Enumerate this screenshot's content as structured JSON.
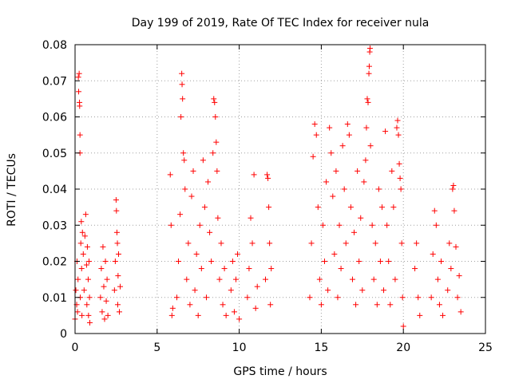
{
  "chart_data": {
    "type": "scatter",
    "title": "Day 199 of 2019, Rate Of TEC Index for receiver nula",
    "xlabel": "GPS time / hours",
    "ylabel": "ROTI / TECUs",
    "xlim": [
      0,
      25
    ],
    "ylim": [
      0,
      0.08
    ],
    "x_ticks": [
      0,
      5,
      10,
      15,
      20,
      25
    ],
    "y_ticks": [
      0,
      0.01,
      0.02,
      0.03,
      0.04,
      0.05,
      0.06,
      0.07,
      0.08
    ],
    "x_tick_labels": [
      "0",
      "5",
      "10",
      "15",
      "20",
      "25"
    ],
    "y_tick_labels": [
      "0",
      "0.01",
      "0.02",
      "0.03",
      "0.04",
      "0.05",
      "0.06",
      "0.07",
      "0.08"
    ],
    "grid": true,
    "marker": "+",
    "color": "#ff0000",
    "series": [
      {
        "points": [
          [
            0.0,
            0.004
          ],
          [
            0.05,
            0.012
          ],
          [
            0.1,
            0.008
          ],
          [
            0.12,
            0.02
          ],
          [
            0.15,
            0.006
          ],
          [
            0.18,
            0.015
          ],
          [
            0.2,
            0.071
          ],
          [
            0.22,
            0.067
          ],
          [
            0.25,
            0.072
          ],
          [
            0.27,
            0.064
          ],
          [
            0.28,
            0.063
          ],
          [
            0.3,
            0.055
          ],
          [
            0.3,
            0.05
          ],
          [
            0.32,
            0.01
          ],
          [
            0.35,
            0.025
          ],
          [
            0.38,
            0.031
          ],
          [
            0.4,
            0.018
          ],
          [
            0.42,
            0.005
          ],
          [
            0.45,
            0.028
          ],
          [
            0.5,
            0.022
          ],
          [
            0.55,
            0.012
          ],
          [
            0.6,
            0.027
          ],
          [
            0.65,
            0.033
          ],
          [
            0.7,
            0.019
          ],
          [
            0.72,
            0.008
          ],
          [
            0.75,
            0.024
          ],
          [
            0.8,
            0.015
          ],
          [
            0.82,
            0.005
          ],
          [
            0.85,
            0.02
          ],
          [
            0.88,
            0.01
          ],
          [
            0.9,
            0.003
          ],
          [
            1.55,
            0.01
          ],
          [
            1.6,
            0.018
          ],
          [
            1.65,
            0.006
          ],
          [
            1.7,
            0.024
          ],
          [
            1.75,
            0.013
          ],
          [
            1.8,
            0.004
          ],
          [
            1.85,
            0.02
          ],
          [
            1.9,
            0.009
          ],
          [
            1.95,
            0.015
          ],
          [
            2.0,
            0.005
          ],
          [
            2.4,
            0.012
          ],
          [
            2.45,
            0.02
          ],
          [
            2.5,
            0.037
          ],
          [
            2.52,
            0.034
          ],
          [
            2.55,
            0.028
          ],
          [
            2.58,
            0.025
          ],
          [
            2.6,
            0.008
          ],
          [
            2.62,
            0.016
          ],
          [
            2.65,
            0.022
          ],
          [
            2.7,
            0.006
          ],
          [
            2.75,
            0.013
          ],
          [
            5.8,
            0.044
          ],
          [
            5.85,
            0.03
          ],
          [
            5.9,
            0.005
          ],
          [
            5.95,
            0.007
          ],
          [
            6.2,
            0.01
          ],
          [
            6.3,
            0.02
          ],
          [
            6.4,
            0.033
          ],
          [
            6.45,
            0.06
          ],
          [
            6.5,
            0.072
          ],
          [
            6.52,
            0.069
          ],
          [
            6.55,
            0.065
          ],
          [
            6.6,
            0.05
          ],
          [
            6.65,
            0.048
          ],
          [
            6.7,
            0.04
          ],
          [
            6.8,
            0.015
          ],
          [
            6.9,
            0.025
          ],
          [
            7.0,
            0.008
          ],
          [
            7.1,
            0.038
          ],
          [
            7.2,
            0.045
          ],
          [
            7.3,
            0.012
          ],
          [
            7.4,
            0.022
          ],
          [
            7.5,
            0.005
          ],
          [
            7.6,
            0.03
          ],
          [
            7.7,
            0.018
          ],
          [
            7.8,
            0.048
          ],
          [
            7.9,
            0.035
          ],
          [
            8.0,
            0.01
          ],
          [
            8.1,
            0.042
          ],
          [
            8.2,
            0.028
          ],
          [
            8.3,
            0.02
          ],
          [
            8.4,
            0.05
          ],
          [
            8.45,
            0.065
          ],
          [
            8.5,
            0.064
          ],
          [
            8.55,
            0.06
          ],
          [
            8.6,
            0.053
          ],
          [
            8.65,
            0.045
          ],
          [
            8.7,
            0.032
          ],
          [
            8.8,
            0.015
          ],
          [
            8.9,
            0.025
          ],
          [
            9.0,
            0.008
          ],
          [
            9.1,
            0.018
          ],
          [
            9.2,
            0.005
          ],
          [
            9.5,
            0.012
          ],
          [
            9.6,
            0.02
          ],
          [
            9.7,
            0.006
          ],
          [
            9.8,
            0.015
          ],
          [
            9.9,
            0.022
          ],
          [
            10.0,
            0.004
          ],
          [
            10.5,
            0.01
          ],
          [
            10.6,
            0.018
          ],
          [
            10.7,
            0.032
          ],
          [
            10.8,
            0.025
          ],
          [
            10.9,
            0.044
          ],
          [
            11.0,
            0.007
          ],
          [
            11.1,
            0.013
          ],
          [
            11.6,
            0.015
          ],
          [
            11.7,
            0.044
          ],
          [
            11.75,
            0.043
          ],
          [
            11.8,
            0.035
          ],
          [
            11.85,
            0.025
          ],
          [
            11.9,
            0.008
          ],
          [
            11.95,
            0.018
          ],
          [
            14.3,
            0.01
          ],
          [
            14.4,
            0.025
          ],
          [
            14.5,
            0.049
          ],
          [
            14.6,
            0.058
          ],
          [
            14.7,
            0.055
          ],
          [
            14.8,
            0.035
          ],
          [
            14.9,
            0.015
          ],
          [
            15.0,
            0.008
          ],
          [
            15.1,
            0.03
          ],
          [
            15.2,
            0.02
          ],
          [
            15.3,
            0.042
          ],
          [
            15.4,
            0.012
          ],
          [
            15.5,
            0.057
          ],
          [
            15.6,
            0.05
          ],
          [
            15.7,
            0.038
          ],
          [
            15.8,
            0.022
          ],
          [
            15.9,
            0.045
          ],
          [
            16.0,
            0.01
          ],
          [
            16.1,
            0.03
          ],
          [
            16.2,
            0.018
          ],
          [
            16.3,
            0.052
          ],
          [
            16.4,
            0.04
          ],
          [
            16.5,
            0.025
          ],
          [
            16.6,
            0.058
          ],
          [
            16.7,
            0.055
          ],
          [
            16.8,
            0.035
          ],
          [
            16.9,
            0.015
          ],
          [
            17.0,
            0.028
          ],
          [
            17.1,
            0.008
          ],
          [
            17.2,
            0.045
          ],
          [
            17.3,
            0.02
          ],
          [
            17.4,
            0.032
          ],
          [
            17.5,
            0.012
          ],
          [
            17.6,
            0.042
          ],
          [
            17.7,
            0.048
          ],
          [
            17.75,
            0.057
          ],
          [
            17.8,
            0.065
          ],
          [
            17.85,
            0.064
          ],
          [
            17.9,
            0.072
          ],
          [
            17.92,
            0.074
          ],
          [
            17.95,
            0.078
          ],
          [
            17.97,
            0.079
          ],
          [
            18.0,
            0.052
          ],
          [
            18.1,
            0.03
          ],
          [
            18.2,
            0.015
          ],
          [
            18.3,
            0.025
          ],
          [
            18.4,
            0.008
          ],
          [
            18.5,
            0.04
          ],
          [
            18.6,
            0.02
          ],
          [
            18.7,
            0.035
          ],
          [
            18.8,
            0.012
          ],
          [
            18.9,
            0.056
          ],
          [
            19.0,
            0.03
          ],
          [
            19.1,
            0.02
          ],
          [
            19.2,
            0.008
          ],
          [
            19.3,
            0.045
          ],
          [
            19.4,
            0.035
          ],
          [
            19.5,
            0.015
          ],
          [
            19.6,
            0.057
          ],
          [
            19.65,
            0.059
          ],
          [
            19.7,
            0.055
          ],
          [
            19.75,
            0.047
          ],
          [
            19.8,
            0.043
          ],
          [
            19.85,
            0.04
          ],
          [
            19.9,
            0.025
          ],
          [
            19.95,
            0.01
          ],
          [
            20.0,
            0.002
          ],
          [
            20.7,
            0.018
          ],
          [
            20.8,
            0.025
          ],
          [
            20.9,
            0.01
          ],
          [
            21.0,
            0.005
          ],
          [
            21.7,
            0.01
          ],
          [
            21.8,
            0.022
          ],
          [
            21.9,
            0.034
          ],
          [
            22.0,
            0.03
          ],
          [
            22.1,
            0.015
          ],
          [
            22.2,
            0.008
          ],
          [
            22.3,
            0.02
          ],
          [
            22.4,
            0.005
          ],
          [
            22.7,
            0.012
          ],
          [
            22.8,
            0.025
          ],
          [
            22.9,
            0.018
          ],
          [
            23.0,
            0.04
          ],
          [
            23.05,
            0.041
          ],
          [
            23.1,
            0.034
          ],
          [
            23.2,
            0.024
          ],
          [
            23.3,
            0.01
          ],
          [
            23.4,
            0.016
          ],
          [
            23.5,
            0.006
          ]
        ]
      }
    ]
  }
}
